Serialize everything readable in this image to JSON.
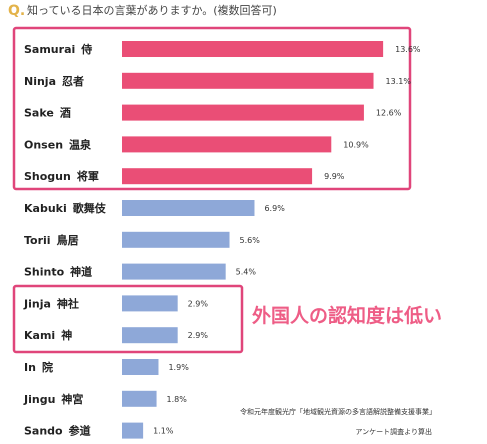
{
  "question": {
    "marker": "Q.",
    "text": "知っている日本の言葉がありますか。(複数回答可)"
  },
  "callout": "外国人の認知度は低い",
  "source": {
    "line1": "令和元年度観光庁「地域観光資源の多言語解説整備支援事業」",
    "line2": "アンケート調査より算出"
  },
  "colors": {
    "highlight_bar": "#ea4e76",
    "normal_bar": "#8ea8d8",
    "frame": "#e0457a",
    "question_marker": "#e3b34a",
    "callout_text": "#ee5d86"
  },
  "chart_data": {
    "type": "bar",
    "orientation": "horizontal",
    "categories": [
      "Samurai 侍",
      "Ninja 忍者",
      "Sake 酒",
      "Onsen 温泉",
      "Shogun 将軍",
      "Kabuki 歌舞伎",
      "Torii 鳥居",
      "Shinto 神道",
      "Jinja 神社",
      "Kami 神",
      "In 院",
      "Jingu 神宮",
      "Sando 参道"
    ],
    "category_terms": [
      {
        "en": "Samurai",
        "ja": "侍"
      },
      {
        "en": "Ninja",
        "ja": "忍者"
      },
      {
        "en": "Sake",
        "ja": "酒"
      },
      {
        "en": "Onsen",
        "ja": "温泉"
      },
      {
        "en": "Shogun",
        "ja": "将軍"
      },
      {
        "en": "Kabuki",
        "ja": "歌舞伎"
      },
      {
        "en": "Torii",
        "ja": "鳥居"
      },
      {
        "en": "Shinto",
        "ja": "神道"
      },
      {
        "en": "Jinja",
        "ja": "神社"
      },
      {
        "en": "Kami",
        "ja": "神"
      },
      {
        "en": "In",
        "ja": "院"
      },
      {
        "en": "Jingu",
        "ja": "神宮"
      },
      {
        "en": "Sando",
        "ja": "参道"
      }
    ],
    "values": [
      13.6,
      13.1,
      12.6,
      10.9,
      9.9,
      6.9,
      5.6,
      5.4,
      2.9,
      2.9,
      1.9,
      1.8,
      1.1
    ],
    "value_labels": [
      "13.6%",
      "13.1%",
      "12.6%",
      "10.9%",
      "9.9%",
      "6.9%",
      "5.6%",
      "5.4%",
      "2.9%",
      "2.9%",
      "1.9%",
      "1.8%",
      "1.1%"
    ],
    "unit": "%",
    "highlighted_top": [
      "Samurai 侍",
      "Ninja 忍者",
      "Sake 酒",
      "Onsen 温泉",
      "Shogun 将軍"
    ],
    "highlighted_low": [
      "Jinja 神社",
      "Kami 神"
    ],
    "grid": false,
    "legend": "none"
  }
}
